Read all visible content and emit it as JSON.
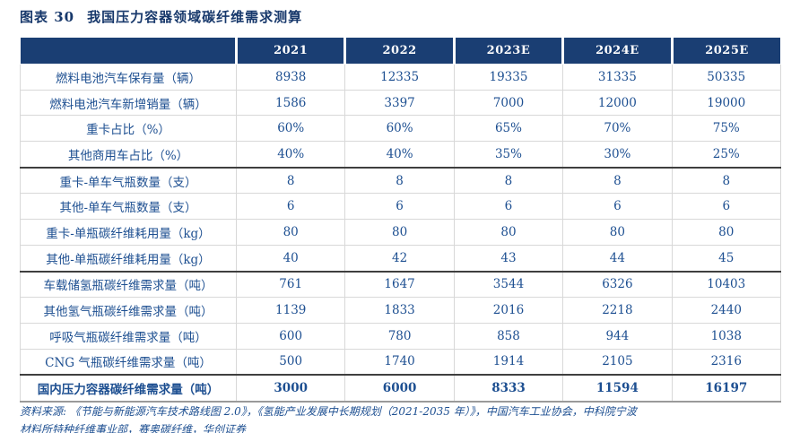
{
  "header": {
    "figure_label": "图表 30",
    "figure_title": "我国压力容器领域碳纤维需求测算"
  },
  "colors": {
    "header_bg": "#1a3e73",
    "title_text": "#17386b",
    "body_text": "#1d4f91",
    "section_border": "#3f3f3f",
    "grid_border": "#d8d8d8"
  },
  "table": {
    "columns": [
      "",
      "2021",
      "2022",
      "2023E",
      "2024E",
      "2025E"
    ],
    "rows": [
      {
        "label": "燃料电池汽车保有量（辆）",
        "values": [
          "8938",
          "12335",
          "19335",
          "31335",
          "50335"
        ]
      },
      {
        "label": "燃料电池汽车新增销量（辆）",
        "values": [
          "1586",
          "3397",
          "7000",
          "12000",
          "19000"
        ]
      },
      {
        "label": "重卡占比（%）",
        "values": [
          "60%",
          "60%",
          "65%",
          "70%",
          "75%"
        ]
      },
      {
        "label": "其他商用车占比（%）",
        "values": [
          "40%",
          "40%",
          "35%",
          "30%",
          "25%"
        ]
      },
      {
        "label": "重卡-单车气瓶数量（支）",
        "values": [
          "8",
          "8",
          "8",
          "8",
          "8"
        ]
      },
      {
        "label": "其他-单车气瓶数量（支）",
        "values": [
          "6",
          "6",
          "6",
          "6",
          "6"
        ]
      },
      {
        "label": "重卡-单瓶碳纤维耗用量（kg）",
        "values": [
          "80",
          "80",
          "80",
          "80",
          "80"
        ]
      },
      {
        "label": "其他-单瓶碳纤维耗用量（kg）",
        "values": [
          "40",
          "42",
          "43",
          "44",
          "45"
        ]
      },
      {
        "label": "车载储氢瓶碳纤维需求量（吨）",
        "values": [
          "761",
          "1647",
          "3544",
          "6326",
          "10403"
        ]
      },
      {
        "label": "其他氢气瓶碳纤维需求量（吨）",
        "values": [
          "1139",
          "1833",
          "2016",
          "2218",
          "2440"
        ]
      },
      {
        "label": "呼吸气瓶碳纤维需求量（吨）",
        "values": [
          "600",
          "780",
          "858",
          "944",
          "1038"
        ]
      },
      {
        "label": "CNG 气瓶碳纤维需求量（吨）",
        "values": [
          "500",
          "1740",
          "1914",
          "2105",
          "2316"
        ]
      },
      {
        "label": "国内压力容器碳纤维需求量（吨）",
        "values": [
          "3000",
          "6000",
          "8333",
          "11594",
          "16197"
        ]
      }
    ]
  },
  "footer": {
    "line1": "资料来源: 《节能与新能源汽车技术路线图 2.0》，《氢能产业发展中长期规划（2021-2035 年）》，中国汽车工业协会，中科院宁波",
    "line2": "材料所特种纤维事业部，赛奥碳纤维，华创证券"
  }
}
